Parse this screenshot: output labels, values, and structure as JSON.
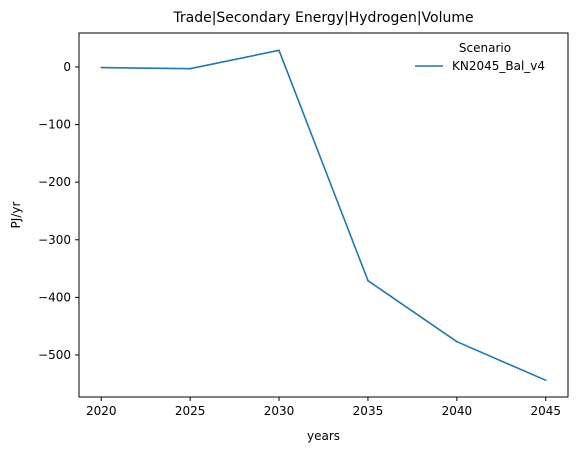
{
  "chart_data": {
    "type": "line",
    "title": "Trade|Secondary Energy|Hydrogen|Volume",
    "xlabel": "years",
    "ylabel": "PJ/yr",
    "x": [
      2020,
      2025,
      2030,
      2035,
      2040,
      2045
    ],
    "xticks": [
      2020,
      2025,
      2030,
      2035,
      2040,
      2045
    ],
    "yticks": [
      0,
      -100,
      -200,
      -300,
      -400,
      -500
    ],
    "xlim": [
      2018.75,
      2046.25
    ],
    "ylim": [
      -573,
      59
    ],
    "grid": false,
    "legend": {
      "title": "Scenario",
      "placement": "top-right"
    },
    "series": [
      {
        "name": "KN2045_Bal_v4",
        "color": "#1f77b4",
        "values": [
          -1,
          -3,
          29,
          -371,
          -477,
          -544
        ]
      }
    ]
  }
}
